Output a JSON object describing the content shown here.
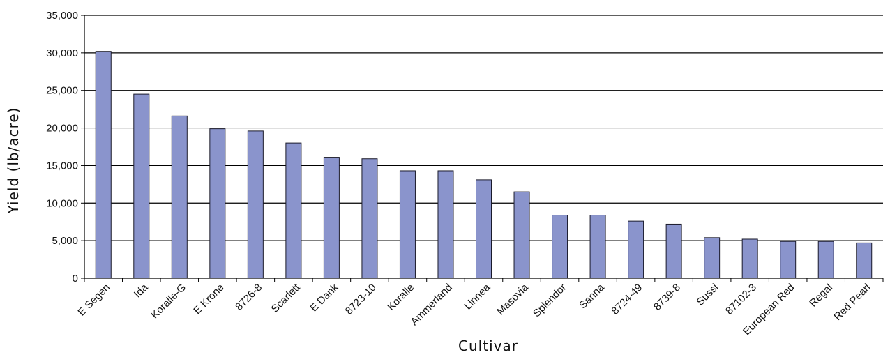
{
  "chart_data": {
    "type": "bar",
    "title": "",
    "xlabel": "Cultivar",
    "ylabel": "Yield (lb/acre)",
    "ylim": [
      0,
      35000
    ],
    "yticks": [
      0,
      5000,
      10000,
      15000,
      20000,
      25000,
      30000,
      35000
    ],
    "ytick_labels": [
      "0",
      "5,000",
      "10,000",
      "15,000",
      "20,000",
      "25,000",
      "30,000",
      "35,000"
    ],
    "grid": true,
    "legend": "none",
    "categories": [
      "E Segen",
      "Ida",
      "Koralle-G",
      "E Krone",
      "8726-8",
      "Scarlett",
      "E Dank",
      "8723-10",
      "Koralle",
      "Ammerland",
      "Linnea",
      "Masovia",
      "Splendor",
      "Sanna",
      "8724-49",
      "8739-8",
      "Sussi",
      "87102-3",
      "European Red",
      "Regal",
      "Red Pearl"
    ],
    "series": [
      {
        "values": [
          30200,
          24500,
          21600,
          19900,
          19600,
          18000,
          16100,
          15900,
          14300,
          14300,
          13100,
          11500,
          8400,
          8400,
          7600,
          7200,
          5400,
          5200,
          4900,
          4900,
          4700
        ]
      }
    ],
    "colors": {
      "bar_fill": "#8a94cc",
      "bar_stroke": "#1a1a2a",
      "grid": "#000000",
      "axis": "#000000"
    }
  }
}
